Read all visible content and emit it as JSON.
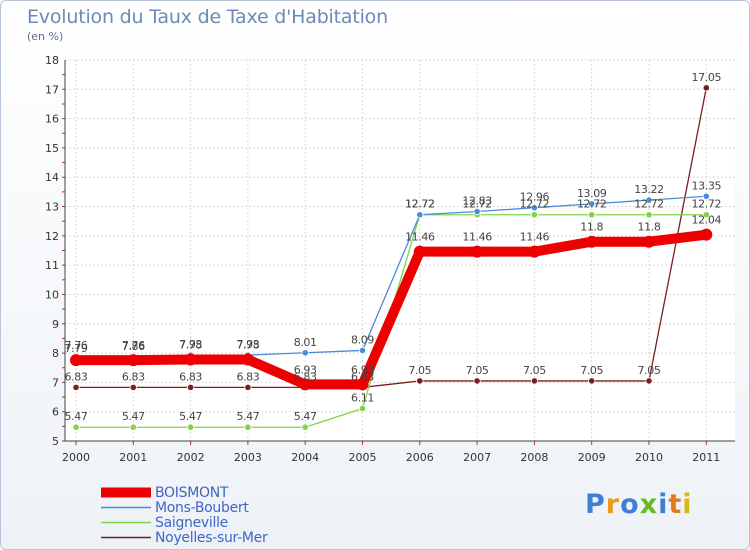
{
  "chart_data": {
    "type": "line",
    "title": "Evolution du Taux de Taxe d'Habitation",
    "unit": "(en %)",
    "categories": [
      "2000",
      "2001",
      "2002",
      "2003",
      "2004",
      "2005",
      "2006",
      "2007",
      "2008",
      "2009",
      "2010",
      "2011"
    ],
    "ylim": [
      5,
      18
    ],
    "yticks": [
      "5",
      "6",
      "7",
      "8",
      "9",
      "10",
      "11",
      "12",
      "13",
      "14",
      "15",
      "16",
      "17",
      "18"
    ],
    "grid": true,
    "legend_position": "bottom-left",
    "series": [
      {
        "name": "BOISMONT",
        "color": "#ee0000",
        "values": [
          7.76,
          7.76,
          7.78,
          7.78,
          6.93,
          6.93,
          11.46,
          11.46,
          11.46,
          11.8,
          11.8,
          12.04
        ],
        "labels": [
          "7.76",
          "7.76",
          "7.78",
          "7.78",
          "6.93",
          "6.93",
          "11.46",
          "11.46",
          "11.46",
          "11.8",
          "11.8",
          "12.04"
        ]
      },
      {
        "name": "Mons-Boubert",
        "color": "#4a8ad8",
        "values": [
          7.79,
          7.86,
          7.93,
          7.93,
          8.01,
          8.09,
          12.72,
          12.83,
          12.96,
          13.09,
          13.22,
          13.35
        ],
        "labels": [
          "7.79",
          "7.86",
          "7.93",
          "7.93",
          "8.01",
          "8.09",
          "12.72",
          "12.83",
          "12.96",
          "13.09",
          "13.22",
          "13.35"
        ]
      },
      {
        "name": "Saigneville",
        "color": "#7ed447",
        "values": [
          5.47,
          5.47,
          5.47,
          5.47,
          5.47,
          6.11,
          12.72,
          12.72,
          12.72,
          12.72,
          12.72,
          12.72
        ],
        "labels": [
          "5.47",
          "5.47",
          "5.47",
          "5.47",
          "5.47",
          "6.11",
          "12.72",
          "12.72",
          "12.72",
          "12.72",
          "12.72",
          "12.72"
        ]
      },
      {
        "name": "Noyelles-sur-Mer",
        "color": "#7a1e1e",
        "values": [
          6.83,
          6.83,
          6.83,
          6.83,
          6.83,
          6.83,
          7.05,
          7.05,
          7.05,
          7.05,
          7.05,
          17.05
        ],
        "labels": [
          "6.83",
          "6.83",
          "6.83",
          "6.83",
          "6.83",
          "6.83",
          "7.05",
          "7.05",
          "7.05",
          "7.05",
          "7.05",
          "17.05"
        ]
      }
    ]
  },
  "logo": {
    "letters": [
      "P",
      "r",
      "o",
      "x",
      "i",
      "t",
      "i"
    ],
    "colors": [
      "#3f7fd6",
      "#e89b1c",
      "#3f7fd6",
      "#66bb22",
      "#3f7fd6",
      "#e07a1f",
      "#d7b819"
    ]
  }
}
